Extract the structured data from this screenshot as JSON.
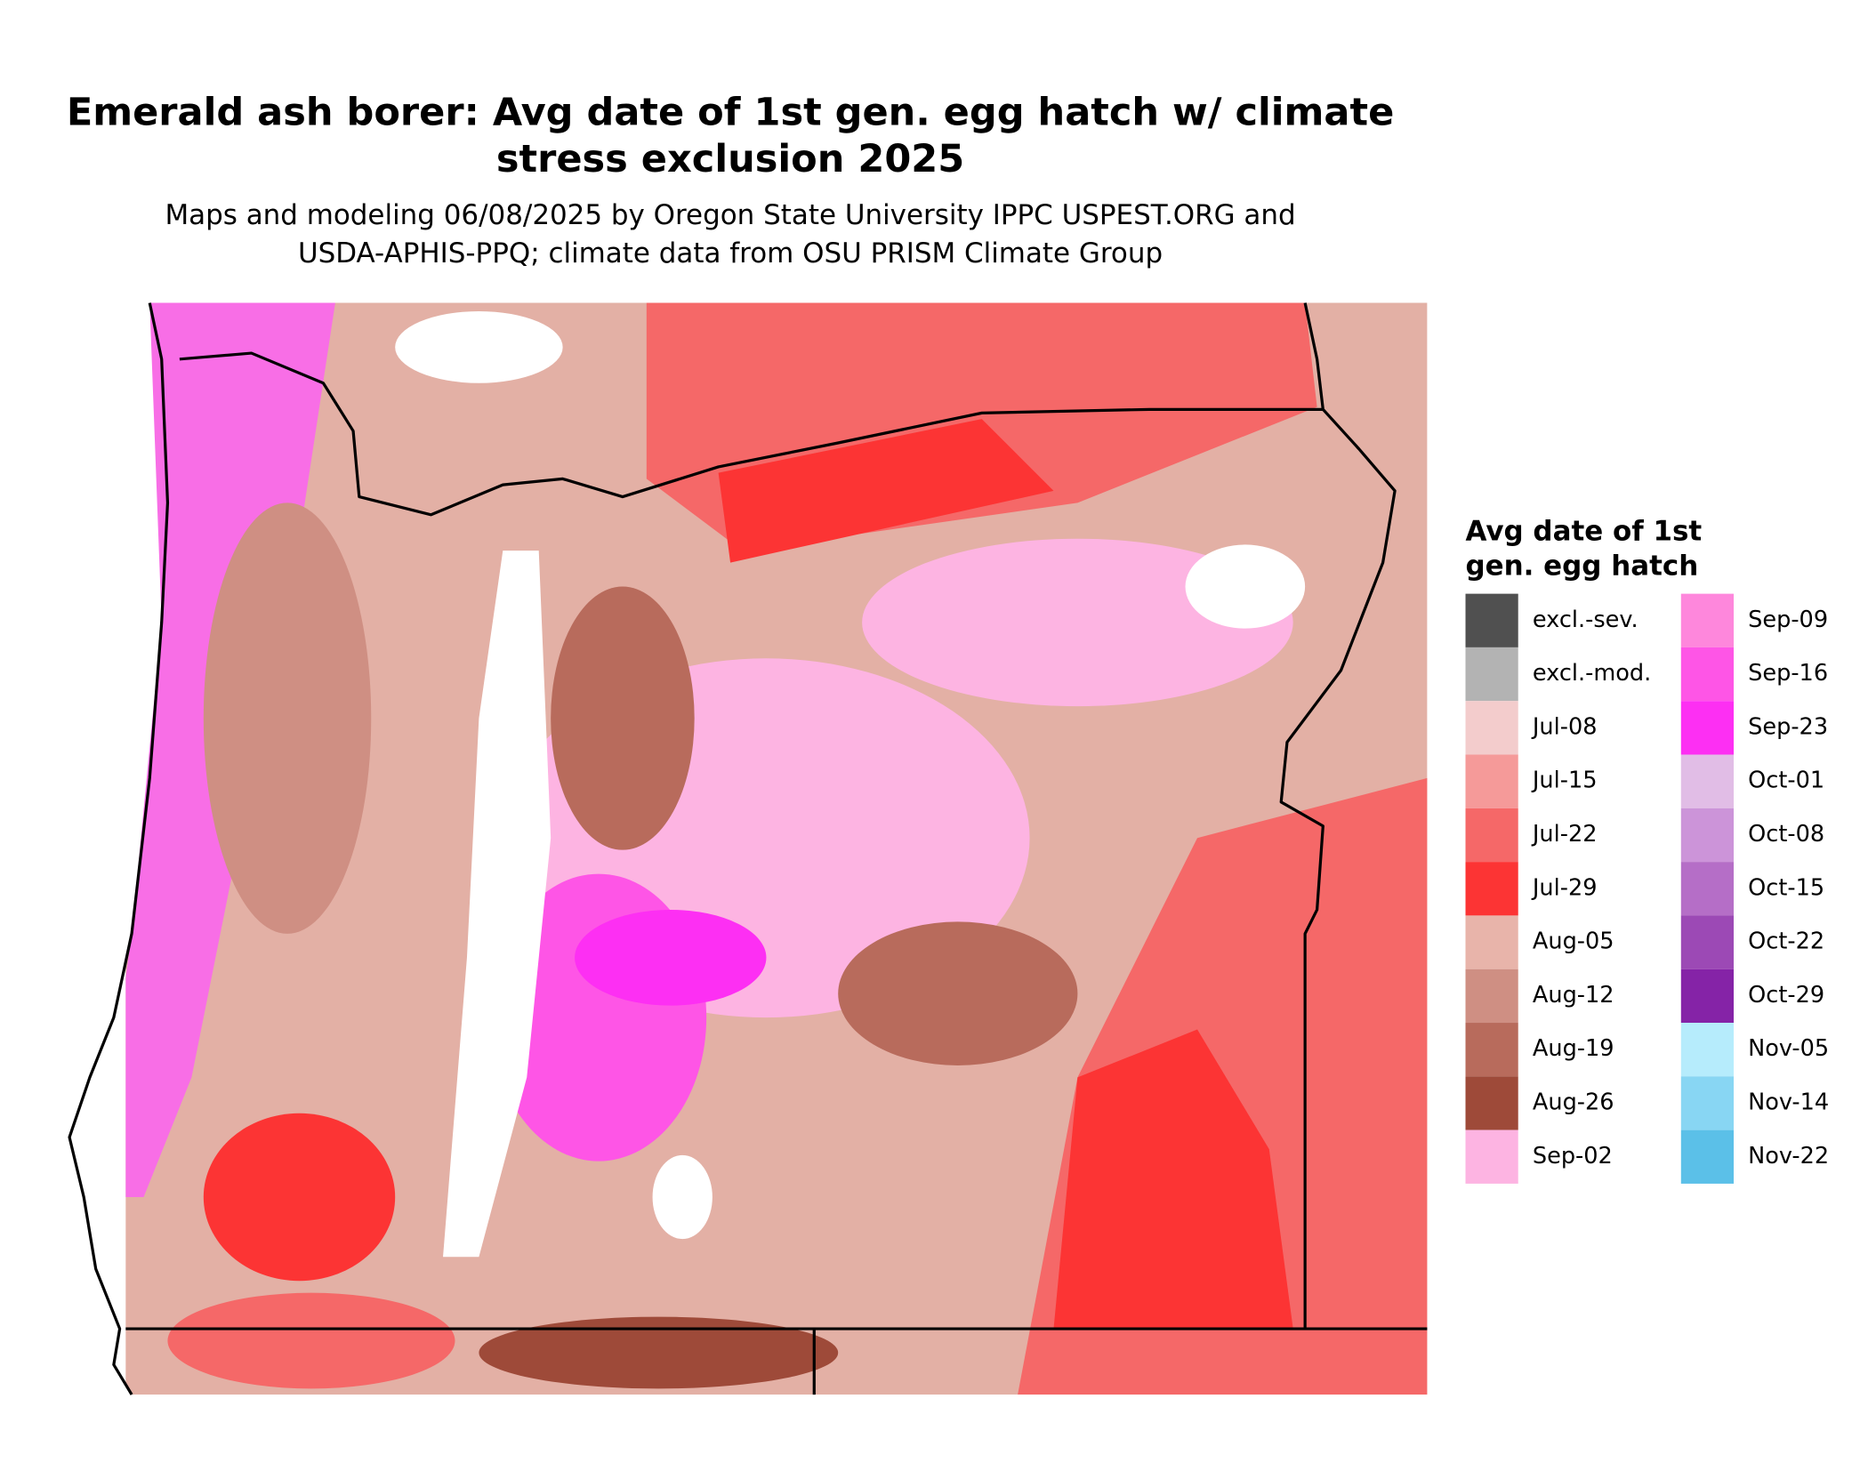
{
  "map": {
    "title": [
      "Emerald ash borer: Avg date of 1st gen. egg hatch w/ climate",
      "stress exclusion 2025"
    ],
    "subtitle": [
      "Maps and modeling 06/08/2025 by Oregon State University IPPC USPEST.ORG and",
      "USDA-APHIS-PPQ; climate data from OSU PRISM Climate Group"
    ],
    "legend": {
      "title": [
        "Avg date of 1st",
        "gen. egg hatch"
      ],
      "columns": 2,
      "items": [
        {
          "label": "excl.-sev.",
          "color": "#505050"
        },
        {
          "label": "excl.-mod.",
          "color": "#b3b3b3"
        },
        {
          "label": "Jul-08",
          "color": "#f3cccc"
        },
        {
          "label": "Jul-15",
          "color": "#f59a99"
        },
        {
          "label": "Jul-22",
          "color": "#f56868"
        },
        {
          "label": "Jul-29",
          "color": "#fc3434"
        },
        {
          "label": "Aug-05",
          "color": "#e8b4aa"
        },
        {
          "label": "Aug-12",
          "color": "#cf8f83"
        },
        {
          "label": "Aug-19",
          "color": "#b86b5c"
        },
        {
          "label": "Aug-26",
          "color": "#9e4a39"
        },
        {
          "label": "Sep-02",
          "color": "#fdb4e2"
        },
        {
          "label": "Sep-09",
          "color": "#fe87dc"
        },
        {
          "label": "Sep-16",
          "color": "#fe55e6"
        },
        {
          "label": "Sep-23",
          "color": "#fd2ff3"
        },
        {
          "label": "Oct-01",
          "color": "#e1bde6"
        },
        {
          "label": "Oct-08",
          "color": "#cc94d9"
        },
        {
          "label": "Oct-15",
          "color": "#b56ec7"
        },
        {
          "label": "Oct-22",
          "color": "#9c49b5"
        },
        {
          "label": "Oct-29",
          "color": "#8523a7"
        },
        {
          "label": "Nov-05",
          "color": "#b6ecfc"
        },
        {
          "label": "Nov-14",
          "color": "#88d6f3"
        },
        {
          "label": "Nov-22",
          "color": "#5bc0e8"
        }
      ]
    }
  }
}
